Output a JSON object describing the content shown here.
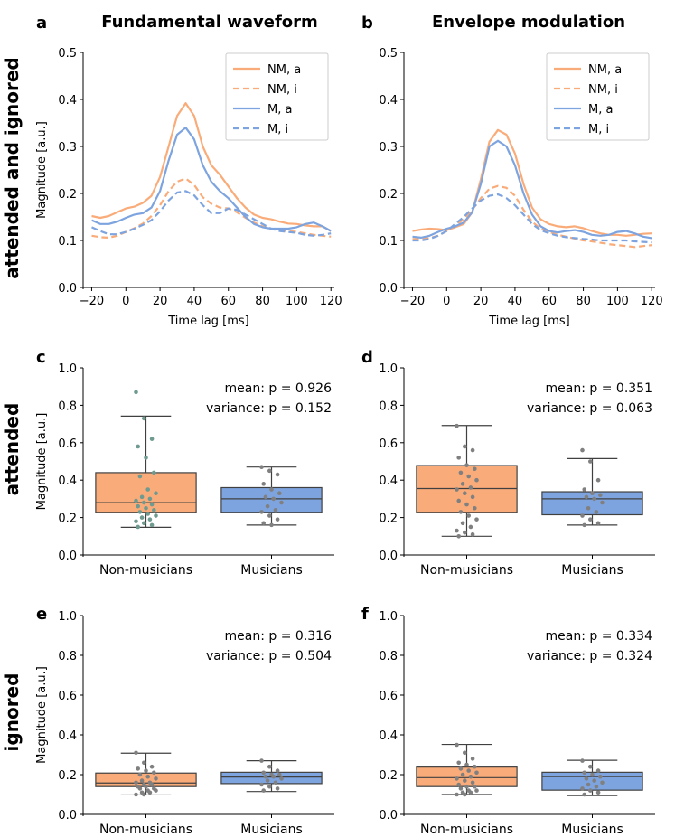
{
  "row_labels": [
    "attended and ignored",
    "attended",
    "ignored"
  ],
  "colors": {
    "nm": "#F9AC7A",
    "m": "#7EA4DF",
    "dot": "#808080",
    "dot_att": "#6f9a8f",
    "box_edge": "#404040"
  },
  "chart_data": [
    {
      "panel": "a",
      "type": "line",
      "title": "Fundamental waveform",
      "xlabel": "Time lag [ms]",
      "ylabel": "Magnitude [a.u.]",
      "xlim": [
        -25,
        122
      ],
      "ylim": [
        0,
        0.5
      ],
      "xticks": [
        -20,
        0,
        20,
        40,
        60,
        80,
        100,
        120
      ],
      "xtick_labels": [
        "−20",
        "0",
        "20",
        "40",
        "60",
        "80",
        "100",
        "120"
      ],
      "yticks": [
        0,
        0.1,
        0.2,
        0.3,
        0.4,
        0.5
      ],
      "ytick_labels": [
        "0.0",
        "0.1",
        "0.2",
        "0.3",
        "0.4",
        "0.5"
      ],
      "legend": [
        "NM, a",
        "NM, i",
        "M, a",
        "M, i"
      ],
      "series": [
        {
          "name": "NM, a",
          "color": "nm",
          "dash": false,
          "x": [
            -20,
            -15,
            -10,
            -5,
            0,
            5,
            10,
            15,
            20,
            25,
            30,
            35,
            40,
            45,
            50,
            55,
            60,
            65,
            70,
            75,
            80,
            85,
            90,
            95,
            100,
            105,
            110,
            115,
            120
          ],
          "y": [
            0.152,
            0.148,
            0.152,
            0.16,
            0.168,
            0.172,
            0.18,
            0.195,
            0.235,
            0.3,
            0.365,
            0.392,
            0.365,
            0.3,
            0.26,
            0.24,
            0.215,
            0.19,
            0.17,
            0.155,
            0.148,
            0.145,
            0.14,
            0.136,
            0.135,
            0.132,
            0.13,
            0.13,
            0.12
          ]
        },
        {
          "name": "NM, i",
          "color": "nm",
          "dash": true,
          "x": [
            -20,
            -15,
            -10,
            -5,
            0,
            5,
            10,
            15,
            20,
            25,
            30,
            35,
            40,
            45,
            50,
            55,
            60,
            65,
            70,
            75,
            80,
            85,
            90,
            95,
            100,
            105,
            110,
            115,
            120
          ],
          "y": [
            0.11,
            0.107,
            0.106,
            0.11,
            0.118,
            0.126,
            0.136,
            0.152,
            0.175,
            0.205,
            0.225,
            0.232,
            0.218,
            0.192,
            0.178,
            0.17,
            0.168,
            0.16,
            0.148,
            0.138,
            0.13,
            0.125,
            0.122,
            0.12,
            0.118,
            0.115,
            0.112,
            0.11,
            0.108
          ]
        },
        {
          "name": "M, a",
          "color": "m",
          "dash": false,
          "x": [
            -20,
            -15,
            -10,
            -5,
            0,
            5,
            10,
            15,
            20,
            25,
            30,
            35,
            40,
            45,
            50,
            55,
            60,
            65,
            70,
            75,
            80,
            85,
            90,
            95,
            100,
            105,
            110,
            115,
            120
          ],
          "y": [
            0.143,
            0.135,
            0.135,
            0.14,
            0.148,
            0.155,
            0.158,
            0.17,
            0.205,
            0.27,
            0.325,
            0.34,
            0.315,
            0.26,
            0.225,
            0.205,
            0.19,
            0.17,
            0.15,
            0.135,
            0.128,
            0.125,
            0.125,
            0.125,
            0.128,
            0.135,
            0.138,
            0.13,
            0.12
          ]
        },
        {
          "name": "M, i",
          "color": "m",
          "dash": true,
          "x": [
            -20,
            -15,
            -10,
            -5,
            0,
            5,
            10,
            15,
            20,
            25,
            30,
            35,
            40,
            45,
            50,
            55,
            60,
            65,
            70,
            75,
            80,
            85,
            90,
            95,
            100,
            105,
            110,
            115,
            120
          ],
          "y": [
            0.128,
            0.12,
            0.113,
            0.113,
            0.118,
            0.125,
            0.133,
            0.143,
            0.162,
            0.185,
            0.202,
            0.205,
            0.196,
            0.175,
            0.158,
            0.158,
            0.168,
            0.165,
            0.155,
            0.145,
            0.135,
            0.125,
            0.12,
            0.118,
            0.116,
            0.112,
            0.11,
            0.112,
            0.115
          ]
        }
      ]
    },
    {
      "panel": "b",
      "type": "line",
      "title": "Envelope modulation",
      "xlabel": "Time lag [ms]",
      "ylabel": "",
      "xlim": [
        -25,
        122
      ],
      "ylim": [
        0,
        0.5
      ],
      "xticks": [
        -20,
        0,
        20,
        40,
        60,
        80,
        100,
        120
      ],
      "xtick_labels": [
        "−20",
        "0",
        "20",
        "40",
        "60",
        "80",
        "100",
        "120"
      ],
      "yticks": [
        0,
        0.1,
        0.2,
        0.3,
        0.4,
        0.5
      ],
      "ytick_labels": [
        "0.0",
        "0.1",
        "0.2",
        "0.3",
        "0.4",
        "0.5"
      ],
      "legend": [
        "NM, a",
        "NM, i",
        "M, a",
        "M, i"
      ],
      "series": [
        {
          "name": "NM, a",
          "color": "nm",
          "dash": false,
          "x": [
            -20,
            -15,
            -10,
            -5,
            0,
            5,
            10,
            15,
            20,
            25,
            30,
            35,
            40,
            45,
            50,
            55,
            60,
            65,
            70,
            75,
            80,
            85,
            90,
            95,
            100,
            105,
            110,
            115,
            120
          ],
          "y": [
            0.12,
            0.123,
            0.125,
            0.124,
            0.122,
            0.128,
            0.135,
            0.16,
            0.23,
            0.31,
            0.335,
            0.325,
            0.285,
            0.22,
            0.17,
            0.145,
            0.135,
            0.13,
            0.128,
            0.13,
            0.126,
            0.12,
            0.115,
            0.112,
            0.112,
            0.11,
            0.112,
            0.114,
            0.115
          ]
        },
        {
          "name": "NM, i",
          "color": "nm",
          "dash": true,
          "x": [
            -20,
            -15,
            -10,
            -5,
            0,
            5,
            10,
            15,
            20,
            25,
            30,
            35,
            40,
            45,
            50,
            55,
            60,
            65,
            70,
            75,
            80,
            85,
            90,
            95,
            100,
            105,
            110,
            115,
            120
          ],
          "y": [
            0.103,
            0.103,
            0.105,
            0.11,
            0.12,
            0.132,
            0.145,
            0.165,
            0.19,
            0.21,
            0.216,
            0.212,
            0.195,
            0.165,
            0.14,
            0.125,
            0.118,
            0.112,
            0.108,
            0.104,
            0.1,
            0.098,
            0.095,
            0.092,
            0.09,
            0.088,
            0.086,
            0.088,
            0.09
          ]
        },
        {
          "name": "M, a",
          "color": "m",
          "dash": false,
          "x": [
            -20,
            -15,
            -10,
            -5,
            0,
            5,
            10,
            15,
            20,
            25,
            30,
            35,
            40,
            45,
            50,
            55,
            60,
            65,
            70,
            75,
            80,
            85,
            90,
            95,
            100,
            105,
            110,
            115,
            120
          ],
          "y": [
            0.108,
            0.106,
            0.11,
            0.118,
            0.125,
            0.13,
            0.138,
            0.16,
            0.22,
            0.3,
            0.312,
            0.3,
            0.26,
            0.2,
            0.155,
            0.13,
            0.12,
            0.117,
            0.12,
            0.122,
            0.118,
            0.112,
            0.11,
            0.112,
            0.118,
            0.12,
            0.115,
            0.108,
            0.105
          ]
        },
        {
          "name": "M, i",
          "color": "m",
          "dash": true,
          "x": [
            -20,
            -15,
            -10,
            -5,
            0,
            5,
            10,
            15,
            20,
            25,
            30,
            35,
            40,
            45,
            50,
            55,
            60,
            65,
            70,
            75,
            80,
            85,
            90,
            95,
            100,
            105,
            110,
            115,
            120
          ],
          "y": [
            0.1,
            0.1,
            0.103,
            0.11,
            0.12,
            0.135,
            0.15,
            0.168,
            0.185,
            0.195,
            0.198,
            0.19,
            0.175,
            0.155,
            0.135,
            0.122,
            0.115,
            0.11,
            0.107,
            0.105,
            0.103,
            0.102,
            0.1,
            0.1,
            0.1,
            0.1,
            0.098,
            0.097,
            0.096
          ]
        }
      ]
    },
    {
      "panel": "c",
      "type": "box",
      "ylabel": "Magnitude [a.u.]",
      "ylim": [
        0,
        1.0
      ],
      "yticks": [
        0,
        0.2,
        0.4,
        0.6,
        0.8,
        1.0
      ],
      "ytick_labels": [
        "0.0",
        "0.2",
        "0.4",
        "0.6",
        "0.8",
        "1.0"
      ],
      "stat_mean": "mean:      p = 0.926",
      "stat_var": "variance: p = 0.152",
      "groups": [
        {
          "label": "Non-musicians",
          "color": "nm",
          "whislo": 0.148,
          "q1": 0.228,
          "median": 0.28,
          "q3": 0.44,
          "whishi": 0.742,
          "points": [
            0.87,
            0.73,
            0.62,
            0.58,
            0.52,
            0.44,
            0.42,
            0.35,
            0.33,
            0.31,
            0.3,
            0.29,
            0.28,
            0.27,
            0.26,
            0.25,
            0.24,
            0.23,
            0.22,
            0.21,
            0.2,
            0.19,
            0.18,
            0.17,
            0.16,
            0.15
          ]
        },
        {
          "label": "Musicians",
          "color": "m",
          "whislo": 0.16,
          "q1": 0.228,
          "median": 0.3,
          "q3": 0.36,
          "whishi": 0.47,
          "points": [
            0.47,
            0.45,
            0.43,
            0.38,
            0.35,
            0.33,
            0.31,
            0.3,
            0.28,
            0.26,
            0.24,
            0.23,
            0.21,
            0.19,
            0.17,
            0.16
          ]
        }
      ]
    },
    {
      "panel": "d",
      "type": "box",
      "ylabel": "",
      "ylim": [
        0,
        1.0
      ],
      "yticks": [
        0,
        0.2,
        0.4,
        0.6,
        0.8,
        1.0
      ],
      "ytick_labels": [
        "0.0",
        "0.2",
        "0.4",
        "0.6",
        "0.8",
        "1.0"
      ],
      "stat_mean": "mean:      p = 0.351",
      "stat_var": "variance: p = 0.063",
      "groups": [
        {
          "label": "Non-musicians",
          "color": "nm",
          "whislo": 0.1,
          "q1": 0.228,
          "median": 0.355,
          "q3": 0.478,
          "whishi": 0.692,
          "points": [
            0.69,
            0.58,
            0.56,
            0.52,
            0.48,
            0.46,
            0.44,
            0.42,
            0.4,
            0.38,
            0.36,
            0.35,
            0.33,
            0.31,
            0.29,
            0.27,
            0.25,
            0.23,
            0.21,
            0.19,
            0.17,
            0.15,
            0.13,
            0.12,
            0.11,
            0.1
          ]
        },
        {
          "label": "Musicians",
          "color": "m",
          "whislo": 0.16,
          "q1": 0.215,
          "median": 0.3,
          "q3": 0.338,
          "whishi": 0.515,
          "points": [
            0.56,
            0.5,
            0.4,
            0.35,
            0.33,
            0.32,
            0.31,
            0.3,
            0.28,
            0.25,
            0.23,
            0.21,
            0.19,
            0.17,
            0.16
          ]
        }
      ]
    },
    {
      "panel": "e",
      "type": "box",
      "ylabel": "Magnitude [a.u.]",
      "ylim": [
        0,
        1.0
      ],
      "yticks": [
        0,
        0.2,
        0.4,
        0.6,
        0.8,
        1.0
      ],
      "ytick_labels": [
        "0.0",
        "0.2",
        "0.4",
        "0.6",
        "0.8",
        "1.0"
      ],
      "stat_mean": "mean:      p = 0.316",
      "stat_var": "variance: p = 0.504",
      "groups": [
        {
          "label": "Non-musicians",
          "color": "nm",
          "whislo": 0.098,
          "q1": 0.14,
          "median": 0.158,
          "q3": 0.208,
          "whishi": 0.308,
          "points": [
            0.31,
            0.26,
            0.24,
            0.23,
            0.22,
            0.21,
            0.2,
            0.19,
            0.18,
            0.17,
            0.16,
            0.16,
            0.15,
            0.15,
            0.14,
            0.14,
            0.13,
            0.13,
            0.12,
            0.12,
            0.11,
            0.11,
            0.1,
            0.1
          ]
        },
        {
          "label": "Musicians",
          "color": "m",
          "whislo": 0.115,
          "q1": 0.155,
          "median": 0.188,
          "q3": 0.212,
          "whishi": 0.27,
          "points": [
            0.27,
            0.24,
            0.22,
            0.21,
            0.2,
            0.2,
            0.19,
            0.19,
            0.18,
            0.17,
            0.16,
            0.15,
            0.14,
            0.13,
            0.12
          ]
        }
      ]
    },
    {
      "panel": "f",
      "type": "box",
      "ylabel": "",
      "ylim": [
        0,
        1.0
      ],
      "yticks": [
        0,
        0.2,
        0.4,
        0.6,
        0.8,
        1.0
      ],
      "ytick_labels": [
        "0.0",
        "0.2",
        "0.4",
        "0.6",
        "0.8",
        "1.0"
      ],
      "stat_mean": "mean:      p = 0.334",
      "stat_var": "variance: p = 0.324",
      "groups": [
        {
          "label": "Non-musicians",
          "color": "nm",
          "whislo": 0.1,
          "q1": 0.14,
          "median": 0.185,
          "q3": 0.238,
          "whishi": 0.352,
          "points": [
            0.35,
            0.31,
            0.28,
            0.26,
            0.25,
            0.24,
            0.23,
            0.22,
            0.21,
            0.2,
            0.19,
            0.18,
            0.17,
            0.16,
            0.15,
            0.14,
            0.14,
            0.13,
            0.12,
            0.12,
            0.11,
            0.11,
            0.1,
            0.1
          ]
        },
        {
          "label": "Musicians",
          "color": "m",
          "whislo": 0.095,
          "q1": 0.122,
          "median": 0.19,
          "q3": 0.212,
          "whishi": 0.272,
          "points": [
            0.27,
            0.24,
            0.22,
            0.21,
            0.2,
            0.19,
            0.18,
            0.17,
            0.16,
            0.15,
            0.14,
            0.13,
            0.12,
            0.11,
            0.1
          ]
        }
      ]
    }
  ]
}
